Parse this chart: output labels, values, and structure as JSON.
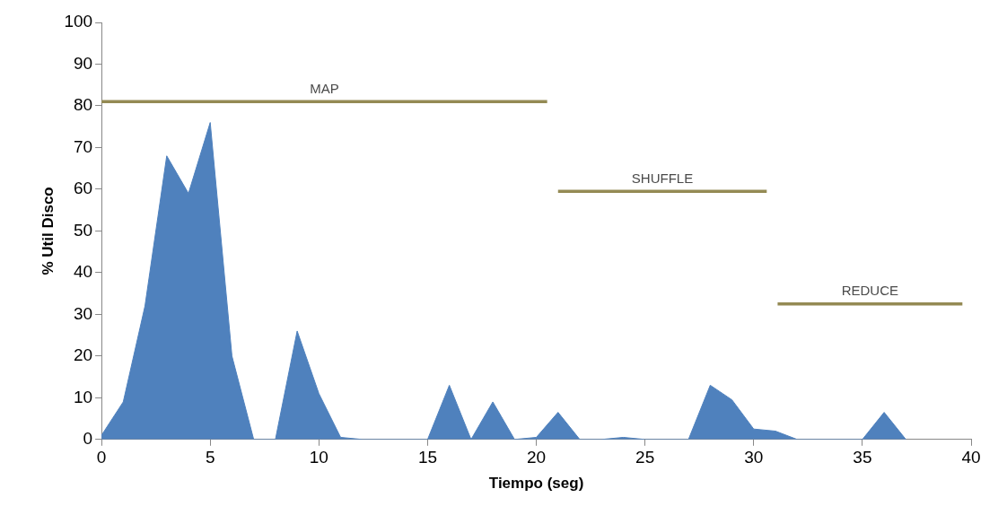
{
  "chart_data": {
    "type": "area",
    "xlabel": "Tiempo (seg)",
    "ylabel": "% Util Disco",
    "xlim": [
      0,
      40
    ],
    "ylim": [
      0,
      100
    ],
    "xticks": [
      0,
      5,
      10,
      15,
      20,
      25,
      30,
      35,
      40
    ],
    "yticks": [
      0,
      10,
      20,
      30,
      40,
      50,
      60,
      70,
      80,
      90,
      100
    ],
    "grid": false,
    "legend": false,
    "marker": "none",
    "series": [
      {
        "color": "#4f81bd",
        "x": [
          0,
          1,
          2,
          3,
          4,
          5,
          6,
          7,
          8,
          9,
          10,
          11,
          12,
          13,
          14,
          15,
          16,
          17,
          18,
          19,
          20,
          21,
          22,
          23,
          24,
          25,
          26,
          27,
          28,
          29,
          30,
          31,
          32,
          33,
          34,
          35,
          36,
          37
        ],
        "values": [
          1,
          9,
          32,
          68,
          59,
          76,
          20,
          0,
          0,
          26,
          11,
          0.5,
          0,
          0,
          0,
          0,
          13,
          0,
          9,
          0,
          0.5,
          6.5,
          0,
          0,
          0.5,
          0,
          0,
          0,
          13,
          9.5,
          2.5,
          2,
          0,
          0,
          0,
          0,
          6.5,
          0
        ]
      },
      {
        "type": "line",
        "name": "MAP",
        "color": "#948a54",
        "x": [
          0,
          20.5
        ],
        "values": [
          81,
          81
        ]
      },
      {
        "type": "line",
        "name": "SHUFFLE",
        "color": "#948a54",
        "x": [
          21,
          30.6
        ],
        "values": [
          59.5,
          59.5
        ]
      },
      {
        "type": "line",
        "name": "REDUCE",
        "color": "#948a54",
        "x": [
          31.1,
          39.6
        ],
        "values": [
          32.5,
          32.5
        ]
      }
    ]
  }
}
